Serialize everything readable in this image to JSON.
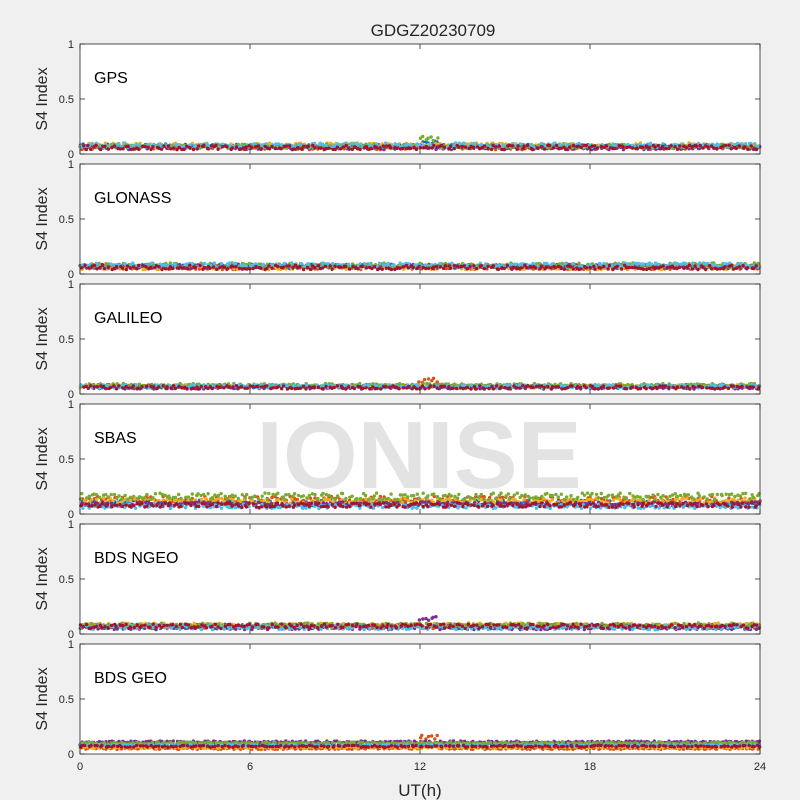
{
  "figure": {
    "title": "GDGZ20230709",
    "watermark": "IONISE",
    "xlabel": "UT(h)",
    "xticks": [
      "0",
      "6",
      "12",
      "18",
      "24"
    ],
    "colors": [
      "#0072BD",
      "#D95319",
      "#EDB120",
      "#7E2F8E",
      "#77AC30",
      "#4DBEEE",
      "#A2142F"
    ]
  },
  "chart_data": [
    {
      "type": "scatter",
      "panel_label": "GPS",
      "ylabel": "S4 Index",
      "xlim": [
        0,
        24
      ],
      "ylim": [
        0,
        1
      ],
      "yticks": [
        "0",
        "0.5",
        "1"
      ],
      "series": [
        {
          "baseline": 0.07,
          "noise": 0.02,
          "bumps": [
            [
              12.3,
              0.12
            ]
          ]
        },
        {
          "baseline": 0.06,
          "noise": 0.02,
          "bumps": [
            [
              20.5,
              0.05
            ]
          ]
        },
        {
          "baseline": 0.08,
          "noise": 0.02,
          "bumps": [
            [
              16.5,
              0.06
            ]
          ]
        },
        {
          "baseline": 0.06,
          "noise": 0.02,
          "bumps": []
        },
        {
          "baseline": 0.07,
          "noise": 0.02,
          "bumps": [
            [
              12.3,
              0.16
            ]
          ]
        },
        {
          "baseline": 0.08,
          "noise": 0.02,
          "bumps": [
            [
              3.0,
              0.04
            ]
          ]
        },
        {
          "baseline": 0.06,
          "noise": 0.02,
          "bumps": [
            [
              6.0,
              0.05
            ]
          ]
        }
      ]
    },
    {
      "type": "scatter",
      "panel_label": "GLONASS",
      "ylabel": "S4 Index",
      "xlim": [
        0,
        24
      ],
      "ylim": [
        0,
        1
      ],
      "yticks": [
        "0",
        "0.5",
        "1"
      ],
      "series": [
        {
          "baseline": 0.07,
          "noise": 0.02,
          "bumps": [
            [
              3.0,
              0.06
            ]
          ]
        },
        {
          "baseline": 0.06,
          "noise": 0.02,
          "bumps": []
        },
        {
          "baseline": 0.06,
          "noise": 0.02,
          "bumps": []
        },
        {
          "baseline": 0.07,
          "noise": 0.02,
          "bumps": [
            [
              9.0,
              0.03
            ]
          ]
        },
        {
          "baseline": 0.08,
          "noise": 0.02,
          "bumps": [
            [
              11.0,
              0.08
            ],
            [
              19.0,
              0.05
            ]
          ]
        },
        {
          "baseline": 0.08,
          "noise": 0.02,
          "bumps": [
            [
              2.7,
              0.07
            ],
            [
              18.0,
              0.07
            ]
          ]
        },
        {
          "baseline": 0.06,
          "noise": 0.02,
          "bumps": []
        }
      ]
    },
    {
      "type": "scatter",
      "panel_label": "GALILEO",
      "ylabel": "S4 Index",
      "xlim": [
        0,
        24
      ],
      "ylim": [
        0,
        1
      ],
      "yticks": [
        "0",
        "0.5",
        "1"
      ],
      "series": [
        {
          "baseline": 0.07,
          "noise": 0.015,
          "bumps": []
        },
        {
          "baseline": 0.07,
          "noise": 0.015,
          "bumps": [
            [
              12.3,
              0.15
            ]
          ]
        },
        {
          "baseline": 0.07,
          "noise": 0.015,
          "bumps": [
            [
              5.0,
              0.03
            ]
          ]
        },
        {
          "baseline": 0.06,
          "noise": 0.015,
          "bumps": [
            [
              22.0,
              0.03
            ]
          ]
        },
        {
          "baseline": 0.08,
          "noise": 0.015,
          "bumps": [
            [
              13.0,
              0.07
            ],
            [
              19.2,
              0.08
            ]
          ]
        },
        {
          "baseline": 0.07,
          "noise": 0.015,
          "bumps": [
            [
              3.5,
              0.03
            ],
            [
              22.5,
              0.04
            ]
          ]
        },
        {
          "baseline": 0.06,
          "noise": 0.015,
          "bumps": [
            [
              8.0,
              0.03
            ]
          ]
        }
      ]
    },
    {
      "type": "scatter",
      "panel_label": "SBAS",
      "ylabel": "S4 Index",
      "xlim": [
        0,
        24
      ],
      "ylim": [
        0,
        1
      ],
      "yticks": [
        "0",
        "0.5",
        "1"
      ],
      "series": [
        {
          "baseline": 0.1,
          "noise": 0.025,
          "bumps": []
        },
        {
          "baseline": 0.13,
          "noise": 0.03,
          "bumps": [
            [
              12.3,
              0.12
            ],
            [
              16.1,
              0.08
            ]
          ]
        },
        {
          "baseline": 0.12,
          "noise": 0.025,
          "bumps": []
        },
        {
          "baseline": 0.09,
          "noise": 0.02,
          "bumps": []
        },
        {
          "baseline": 0.16,
          "noise": 0.03,
          "bumps": [
            [
              0.5,
              0.05
            ],
            [
              23.8,
              0.08
            ]
          ]
        },
        {
          "baseline": 0.07,
          "noise": 0.02,
          "bumps": []
        },
        {
          "baseline": 0.08,
          "noise": 0.02,
          "bumps": []
        }
      ]
    },
    {
      "type": "scatter",
      "panel_label": "BDS NGEO",
      "ylabel": "S4 Index",
      "xlim": [
        0,
        24
      ],
      "ylim": [
        0,
        1
      ],
      "yticks": [
        "0",
        "0.5",
        "1"
      ],
      "series": [
        {
          "baseline": 0.07,
          "noise": 0.02,
          "bumps": []
        },
        {
          "baseline": 0.07,
          "noise": 0.02,
          "bumps": []
        },
        {
          "baseline": 0.08,
          "noise": 0.02,
          "bumps": [
            [
              23.0,
              0.05
            ]
          ]
        },
        {
          "baseline": 0.06,
          "noise": 0.02,
          "bumps": [
            [
              12.3,
              0.16
            ]
          ]
        },
        {
          "baseline": 0.08,
          "noise": 0.02,
          "bumps": [
            [
              8.0,
              0.04
            ]
          ]
        },
        {
          "baseline": 0.06,
          "noise": 0.02,
          "bumps": [
            [
              23.0,
              0.03
            ]
          ]
        },
        {
          "baseline": 0.07,
          "noise": 0.02,
          "bumps": []
        }
      ]
    },
    {
      "type": "scatter",
      "panel_label": "BDS GEO",
      "ylabel": "S4 Index",
      "xlim": [
        0,
        24
      ],
      "ylim": [
        0,
        1
      ],
      "yticks": [
        "0",
        "0.5",
        "1"
      ],
      "series": [
        {
          "baseline": 0.09,
          "noise": 0.008,
          "bumps": []
        },
        {
          "baseline": 0.05,
          "noise": 0.008,
          "bumps": [
            [
              12.3,
              0.18
            ]
          ]
        },
        {
          "baseline": 0.06,
          "noise": 0.008,
          "bumps": []
        },
        {
          "baseline": 0.11,
          "noise": 0.008,
          "bumps": []
        },
        {
          "baseline": 0.1,
          "noise": 0.008,
          "bumps": [
            [
              11.0,
              0.03
            ]
          ]
        },
        {
          "baseline": 0.08,
          "noise": 0.008,
          "bumps": []
        },
        {
          "baseline": 0.07,
          "noise": 0.008,
          "bumps": []
        }
      ]
    }
  ]
}
